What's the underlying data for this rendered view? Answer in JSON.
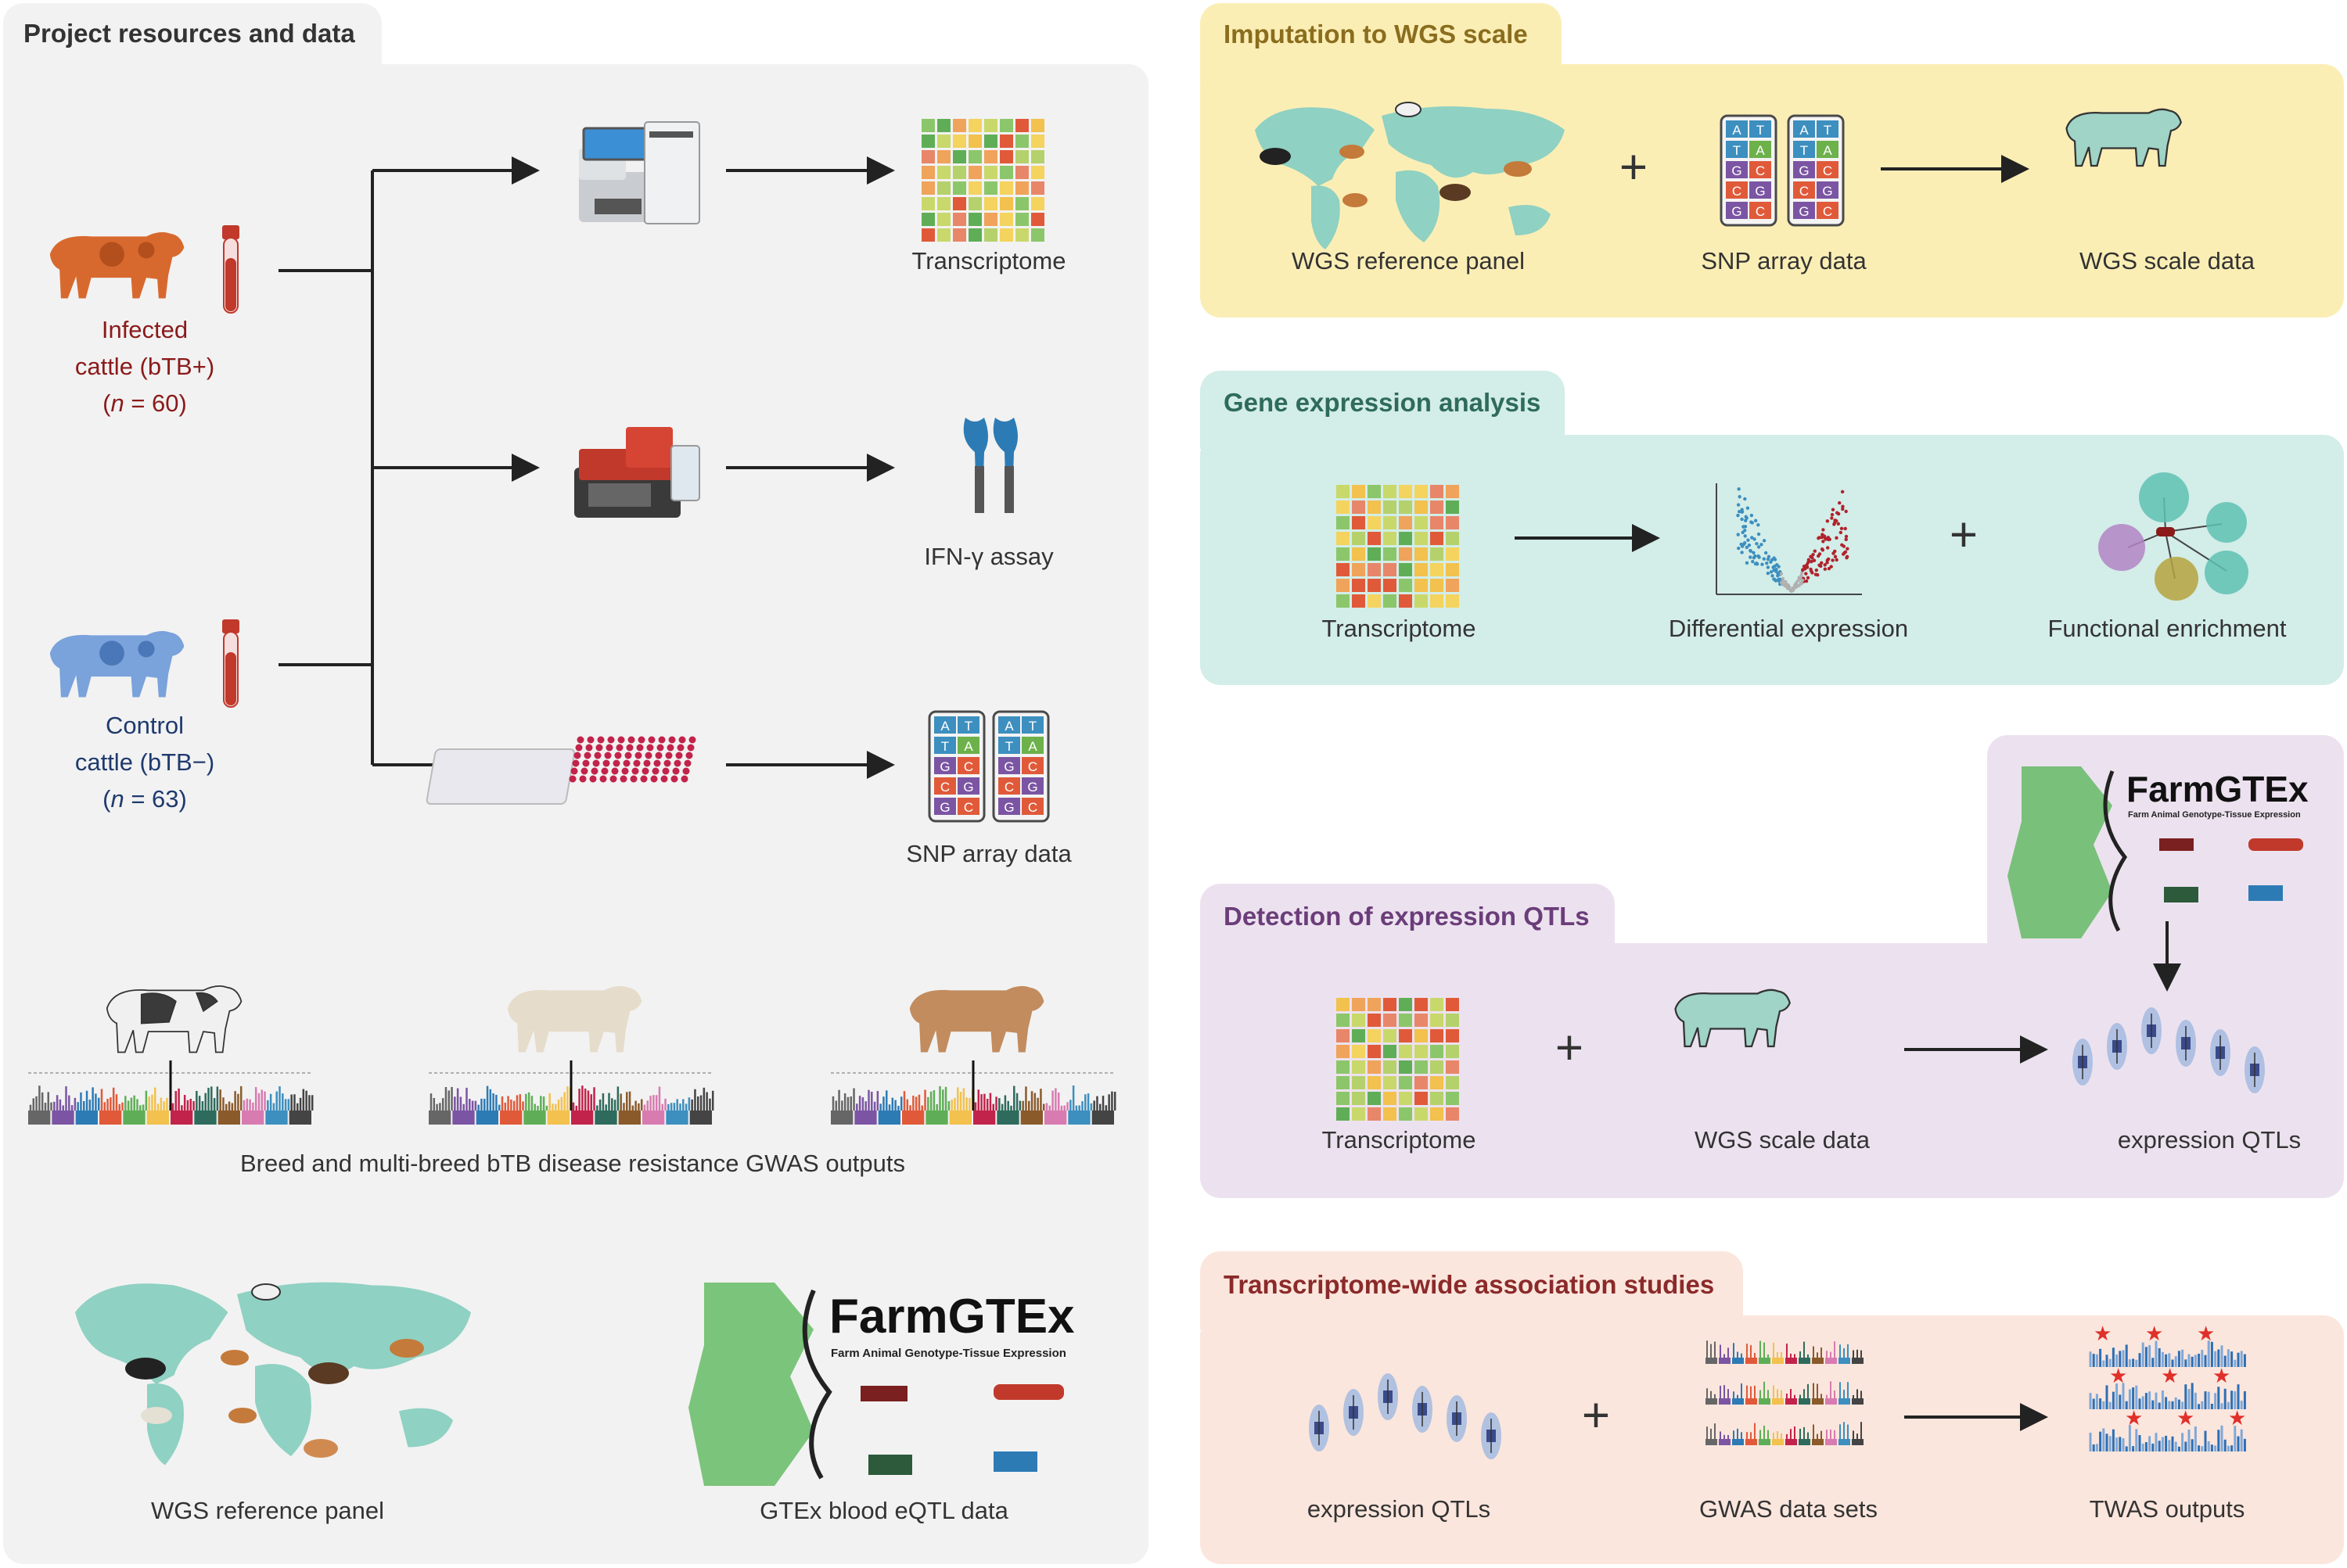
{
  "left_panel": {
    "title": "Project resources and data",
    "infected": {
      "line1": "Infected",
      "line2": "cattle (bTB+)",
      "n_prefix": "(",
      "n_var": "n",
      "n_suffix": " = 60)"
    },
    "control": {
      "line1": "Control",
      "line2": "cattle (bTB−)",
      "n_prefix": "(",
      "n_var": "n",
      "n_suffix": " = 63)"
    },
    "outputs": {
      "transcriptome": "Transcriptome",
      "ifn": "IFN-γ assay",
      "snp": "SNP array data"
    },
    "gwas_caption": "Breed and multi-breed bTB disease resistance GWAS outputs",
    "wgs_panel": "WGS reference panel",
    "gtex": "GTEx blood eQTL data"
  },
  "imputation": {
    "title": "Imputation to WGS scale",
    "items": [
      "WGS reference panel",
      "SNP array data",
      "WGS scale data"
    ]
  },
  "gene_expression": {
    "title": "Gene expression analysis",
    "items": [
      "Transcriptome",
      "Differential expression",
      "Functional enrichment"
    ]
  },
  "eqtl": {
    "title": "Detection of expression QTLs",
    "items": [
      "Transcriptome",
      "WGS scale data",
      "expression QTLs"
    ]
  },
  "twas": {
    "title": "Transcriptome-wide association studies",
    "items": [
      "expression QTLs",
      "GWAS data sets",
      "TWAS outputs"
    ]
  },
  "farmgtex": {
    "logo": "FarmGTEx",
    "subtitle": "Farm Animal Genotype-Tissue Expression"
  },
  "symbols": {
    "plus": "+"
  },
  "colors": {
    "left_bg": "#f2f2f2",
    "imputation_bg": "#fbeeb5",
    "imputation_title": "#8a6d1e",
    "gene_bg": "#d3ede8",
    "gene_title": "#2e6b5c",
    "eqtl_bg": "#ece2ef",
    "eqtl_title": "#6b3d7a",
    "twas_bg": "#fbe6dd",
    "twas_title": "#8b2a2a",
    "infected_cow": "#d8692e",
    "control_cow": "#7aa2db"
  }
}
